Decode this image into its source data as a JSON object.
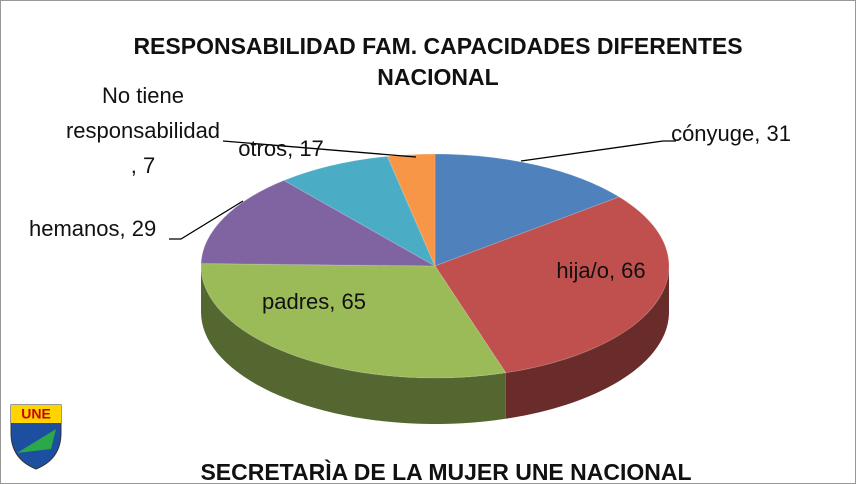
{
  "chart_data": {
    "type": "pie3d",
    "title": "RESPONSABILIDAD FAM. CAPACIDADES DIFERENTES  NACIONAL",
    "values": [
      31,
      66,
      65,
      29,
      17,
      7
    ],
    "value_labels": [
      "cónyuge, 31",
      "hija/o, 66",
      "padres, 65",
      "hemanos, 29",
      "otros, 17",
      "No tiene responsabilidad, 7"
    ],
    "colors": [
      "#4f81bd",
      "#c0504d",
      "#9bbb59",
      "#8064a2",
      "#4bacc6",
      "#f79646"
    ]
  },
  "footer": "SECRETARÌA DE LA MUJER UNE NACIONAL",
  "logo": {
    "text": "UNE"
  }
}
